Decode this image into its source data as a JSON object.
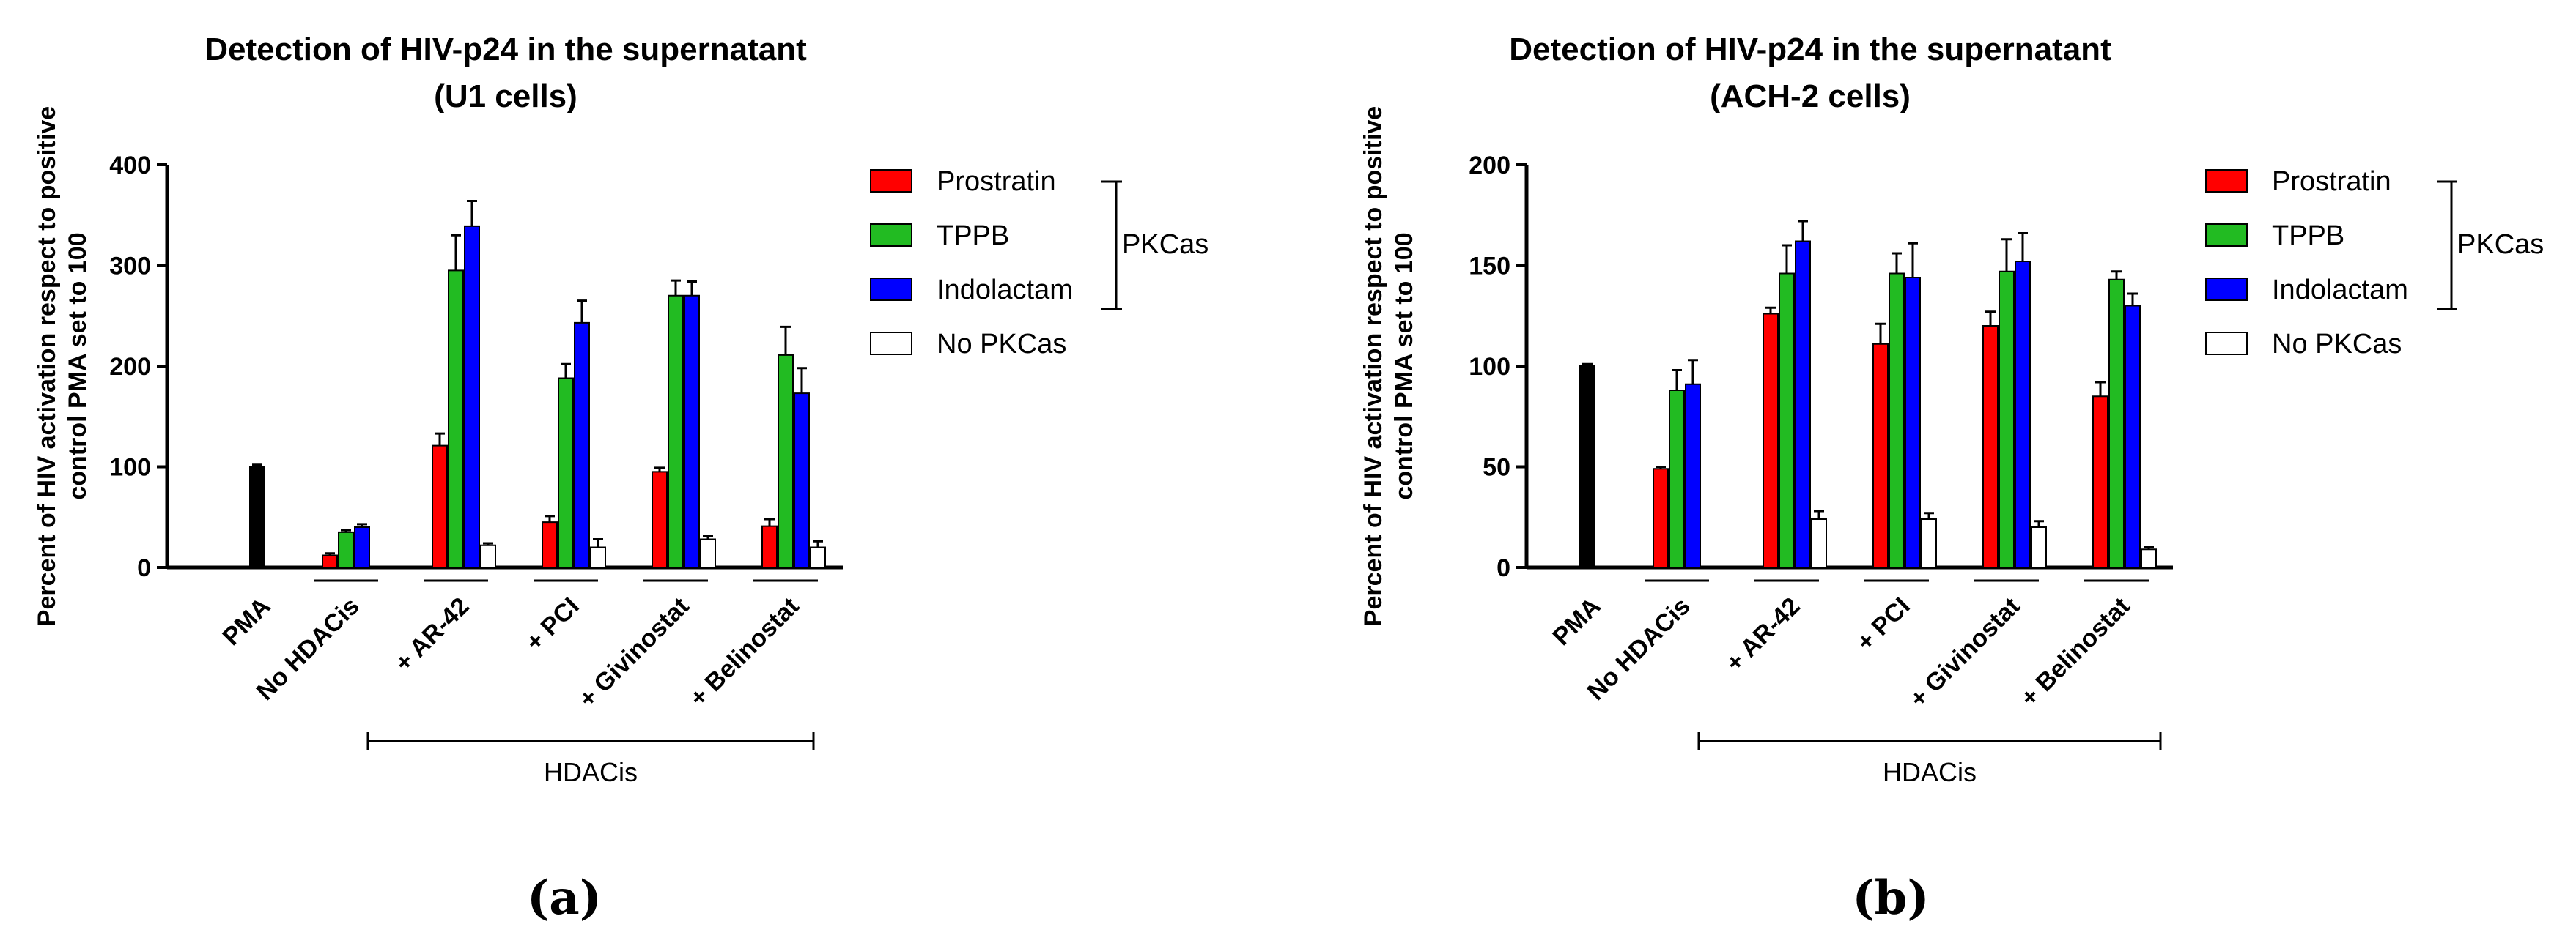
{
  "legend": {
    "items": [
      {
        "label": "Prostratin",
        "color": "#ff0000"
      },
      {
        "label": "TPPB",
        "color": "#22bb22"
      },
      {
        "label": "Indolactam",
        "color": "#0000ff"
      },
      {
        "label": "No PKCas",
        "color": "#ffffff"
      }
    ],
    "bracket_label": "PKCas"
  },
  "control_color": "#000000",
  "group_label": "HDACis",
  "chart_data": [
    {
      "type": "bar",
      "panel_label": "(a)",
      "title_line1": "Detection of HIV-p24 in the supernatant",
      "title_line2": "(U1 cells)",
      "ylabel_line1": "Percent of HIV activation respect to positive",
      "ylabel_line2": "control PMA set to 100",
      "ylim": [
        0,
        400
      ],
      "yticks": [
        "0",
        "100",
        "200",
        "300",
        "400"
      ],
      "categories": [
        "PMA",
        "No HDACis",
        "+ AR-42",
        "+ PCI",
        "+ Givinostat",
        "+ Belinostat"
      ],
      "control": {
        "value": 100,
        "error": 2
      },
      "series": [
        {
          "name": "Prostratin",
          "values": [
            null,
            12,
            121,
            45,
            95,
            41
          ],
          "errors": [
            null,
            2,
            12,
            6,
            4,
            7
          ]
        },
        {
          "name": "TPPB",
          "values": [
            null,
            35,
            295,
            188,
            270,
            211
          ],
          "errors": [
            null,
            2,
            35,
            14,
            15,
            28
          ]
        },
        {
          "name": "Indolactam",
          "values": [
            null,
            40,
            339,
            243,
            270,
            173
          ],
          "errors": [
            null,
            3,
            25,
            22,
            14,
            25
          ]
        },
        {
          "name": "No PKCas",
          "values": [
            null,
            null,
            22,
            20,
            28,
            20
          ],
          "errors": [
            null,
            null,
            2,
            8,
            3,
            6
          ]
        }
      ]
    },
    {
      "type": "bar",
      "panel_label": "(b)",
      "title_line1": "Detection of HIV-p24 in the supernatant",
      "title_line2": "(ACH-2 cells)",
      "ylabel_line1": "Percent of HIV activation respect to positive",
      "ylabel_line2": "control PMA set to 100",
      "ylim": [
        0,
        200
      ],
      "yticks": [
        "0",
        "50",
        "100",
        "150",
        "200"
      ],
      "categories": [
        "PMA",
        "No HDACis",
        "+ AR-42",
        "+ PCI",
        "+ Givinostat",
        "+ Belinostat"
      ],
      "control": {
        "value": 100,
        "error": 1
      },
      "series": [
        {
          "name": "Prostratin",
          "values": [
            null,
            49,
            126,
            111,
            120,
            85
          ],
          "errors": [
            null,
            1,
            3,
            10,
            7,
            7
          ]
        },
        {
          "name": "TPPB",
          "values": [
            null,
            88,
            146,
            146,
            147,
            143
          ],
          "errors": [
            null,
            10,
            14,
            10,
            16,
            4
          ]
        },
        {
          "name": "Indolactam",
          "values": [
            null,
            91,
            162,
            144,
            152,
            130
          ],
          "errors": [
            null,
            12,
            10,
            17,
            14,
            6
          ]
        },
        {
          "name": "No PKCas",
          "values": [
            null,
            null,
            24,
            24,
            20,
            9
          ],
          "errors": [
            null,
            null,
            4,
            3,
            3,
            1
          ]
        }
      ]
    }
  ]
}
